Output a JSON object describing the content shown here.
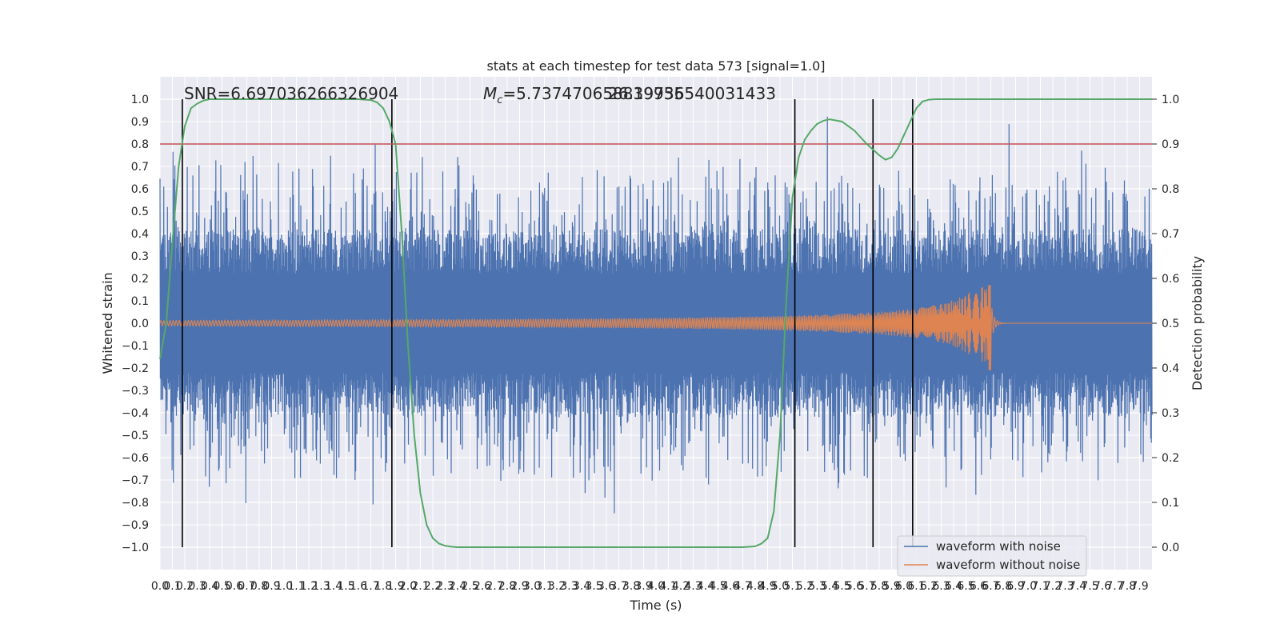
{
  "chart_data": {
    "type": "line",
    "title": "stats at each timestep for test data 573 [signal=1.0]",
    "xlabel": "Time (s)",
    "ylabel": "Whitened strain",
    "y2label": "Detection probability",
    "xlim": [
      0.0,
      8.0
    ],
    "ylim": [
      -1.1,
      1.1
    ],
    "y2lim": [
      -0.05,
      1.05
    ],
    "grid": true,
    "legend_position": "lower-right",
    "annotations": {
      "snr": "SNR=6.697036266326904",
      "mc_symbol": "M",
      "mc_sub": "c",
      "mc_value": "=5.737470658839955",
      "overlap": "26.19736540031433"
    },
    "xticks": [
      "0.0",
      "0.1",
      "0.2",
      "0.3",
      "0.4",
      "0.5",
      "0.6",
      "0.7",
      "0.8",
      "0.9",
      "1.0",
      "1.1",
      "1.2",
      "1.3",
      "1.4",
      "1.5",
      "1.6",
      "1.7",
      "1.8",
      "1.9",
      "2.0",
      "2.1",
      "2.2",
      "2.3",
      "2.4",
      "2.5",
      "2.6",
      "2.7",
      "2.8",
      "2.9",
      "3.0",
      "3.1",
      "3.2",
      "3.3",
      "3.4",
      "3.5",
      "3.6",
      "3.7",
      "3.8",
      "3.9",
      "4.0",
      "4.1",
      "4.2",
      "4.3",
      "4.4",
      "4.5",
      "4.6",
      "4.7",
      "4.8",
      "4.9",
      "5.0",
      "5.1",
      "5.2",
      "5.3",
      "5.4",
      "5.5",
      "5.6",
      "5.7",
      "5.8",
      "5.9",
      "6.0",
      "6.1",
      "6.2",
      "6.3",
      "6.4",
      "6.5",
      "6.6",
      "6.7",
      "6.8",
      "6.9",
      "7.0",
      "7.1",
      "7.2",
      "7.3",
      "7.4",
      "7.5",
      "7.6",
      "7.7",
      "7.8",
      "7.9"
    ],
    "yticks": [
      "1.0",
      "0.9",
      "0.8",
      "0.7",
      "0.6",
      "0.5",
      "0.4",
      "0.3",
      "0.2",
      "0.1",
      "0.0",
      "−0.1",
      "−0.2",
      "−0.3",
      "−0.4",
      "−0.5",
      "−0.6",
      "−0.7",
      "−0.8",
      "−0.9",
      "−1.0"
    ],
    "y2ticks": [
      "1.0",
      "0.9",
      "0.8",
      "0.7",
      "0.6",
      "0.5",
      "0.4",
      "0.3",
      "0.2",
      "0.1",
      "0.0"
    ],
    "threshold": {
      "value": 0.9,
      "axis": "right",
      "color": "#c44e52"
    },
    "vertical_lines": [
      0.18,
      1.87,
      5.12,
      5.75,
      6.07
    ],
    "series": [
      {
        "name": "waveform with noise",
        "color": "#4c72b0",
        "axis": "left",
        "band_abs": 0.22,
        "peak_abs_max": 0.93
      },
      {
        "name": "waveform without noise",
        "color": "#dd8452",
        "axis": "left",
        "merger_time": 6.7,
        "peak_value": 0.17,
        "trough_value": -0.21
      },
      {
        "name": "detection probability",
        "color": "#55a868",
        "axis": "right",
        "x": [
          0.0,
          0.05,
          0.1,
          0.15,
          0.2,
          0.25,
          0.3,
          0.35,
          0.4,
          0.5,
          0.6,
          0.8,
          1.0,
          1.2,
          1.4,
          1.6,
          1.7,
          1.75,
          1.8,
          1.85,
          1.9,
          1.95,
          2.0,
          2.05,
          2.1,
          2.15,
          2.2,
          2.25,
          2.3,
          2.35,
          2.4,
          2.5,
          3.0,
          3.5,
          4.0,
          4.5,
          4.7,
          4.8,
          4.85,
          4.9,
          4.95,
          5.0,
          5.05,
          5.1,
          5.15,
          5.2,
          5.25,
          5.3,
          5.35,
          5.4,
          5.5,
          5.6,
          5.7,
          5.8,
          5.85,
          5.9,
          5.95,
          6.0,
          6.05,
          6.1,
          6.15,
          6.2,
          6.25,
          6.3,
          6.35,
          6.4,
          6.5,
          7.0,
          7.5,
          8.0
        ],
        "values": [
          0.42,
          0.5,
          0.68,
          0.85,
          0.94,
          0.98,
          0.99,
          0.997,
          1.0,
          1.0,
          1.0,
          1.0,
          1.0,
          1.0,
          1.0,
          1.0,
          0.998,
          0.993,
          0.98,
          0.95,
          0.9,
          0.7,
          0.45,
          0.25,
          0.12,
          0.05,
          0.02,
          0.008,
          0.003,
          0.001,
          0.0,
          0.0,
          0.0,
          0.0,
          0.0,
          0.0,
          0.0,
          0.002,
          0.008,
          0.02,
          0.08,
          0.25,
          0.55,
          0.78,
          0.87,
          0.91,
          0.93,
          0.945,
          0.952,
          0.955,
          0.95,
          0.93,
          0.9,
          0.875,
          0.865,
          0.87,
          0.89,
          0.92,
          0.95,
          0.98,
          0.995,
          0.999,
          1.0,
          1.0,
          1.0,
          1.0,
          1.0,
          1.0,
          1.0,
          1.0
        ]
      }
    ]
  }
}
